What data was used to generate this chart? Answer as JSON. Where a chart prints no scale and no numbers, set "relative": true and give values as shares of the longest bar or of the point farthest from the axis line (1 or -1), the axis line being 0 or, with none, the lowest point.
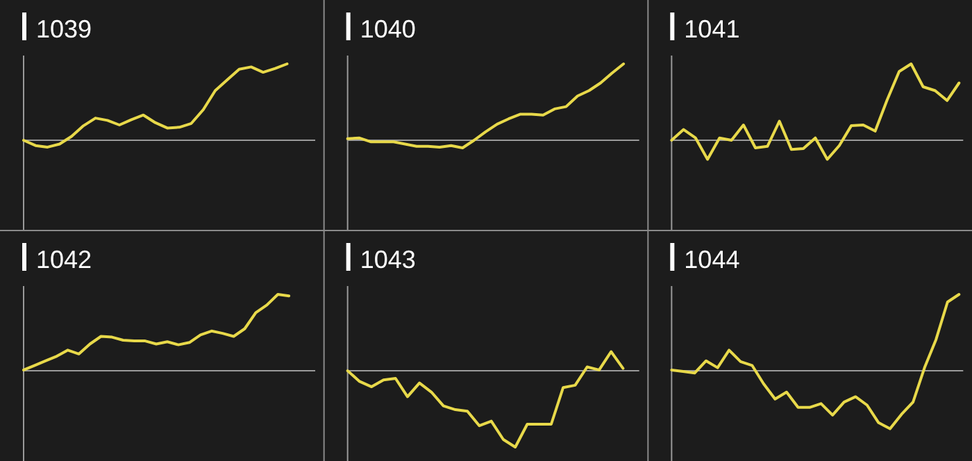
{
  "chart_data": [
    {
      "type": "line",
      "title": "1039",
      "relative": true,
      "categories": [
        null,
        null,
        null,
        null,
        null,
        null,
        null,
        null,
        null,
        null,
        null,
        null,
        null,
        null,
        null,
        null,
        null,
        null,
        null,
        null,
        null,
        null,
        null,
        null,
        null
      ],
      "series": [
        {
          "color": "#e8d94a",
          "values": [
            0,
            -0.07,
            -0.09,
            -0.05,
            0.05,
            0.19,
            0.29,
            0.26,
            0.2,
            0.27,
            0.33,
            0.23,
            0.16,
            0.17,
            0.22,
            0.4,
            0.65,
            0.79,
            0.93,
            0.96,
            0.89,
            0.94,
            1,
            null,
            null
          ]
        }
      ]
    },
    {
      "type": "line",
      "title": "1040",
      "relative": true,
      "categories": [
        null,
        null,
        null,
        null,
        null,
        null,
        null,
        null,
        null,
        null,
        null,
        null,
        null,
        null,
        null,
        null,
        null,
        null,
        null,
        null,
        null,
        null,
        null,
        null,
        null,
        null
      ],
      "series": [
        {
          "color": "#e8d94a",
          "values": [
            0.02,
            0.03,
            -0.02,
            -0.02,
            -0.02,
            -0.05,
            -0.08,
            -0.08,
            -0.09,
            -0.07,
            -0.1,
            0,
            0.11,
            0.21,
            0.28,
            0.34,
            0.34,
            0.33,
            0.41,
            0.44,
            0.58,
            0.65,
            0.75,
            0.88,
            1,
            null
          ]
        }
      ]
    },
    {
      "type": "line",
      "title": "1041",
      "relative": true,
      "categories": [
        null,
        null,
        null,
        null,
        null,
        null,
        null,
        null,
        null,
        null,
        null,
        null,
        null,
        null,
        null,
        null,
        null,
        null,
        null,
        null,
        null,
        null,
        null,
        null,
        null
      ],
      "series": [
        {
          "color": "#e8d94a",
          "values": [
            0,
            0.14,
            0.03,
            -0.25,
            0.03,
            0,
            0.2,
            -0.1,
            -0.08,
            0.25,
            -0.12,
            -0.11,
            0.03,
            -0.25,
            -0.07,
            0.19,
            0.2,
            0.12,
            0.53,
            0.9,
            1,
            0.7,
            0.65,
            0.52,
            0.75
          ]
        }
      ]
    },
    {
      "type": "line",
      "title": "1042",
      "relative": true,
      "categories": [
        null,
        null,
        null,
        null,
        null,
        null,
        null,
        null,
        null,
        null,
        null,
        null,
        null,
        null,
        null,
        null,
        null,
        null,
        null,
        null,
        null,
        null,
        null,
        null,
        null,
        null,
        null
      ],
      "series": [
        {
          "color": "#e8d94a",
          "values": [
            0.01,
            0.07,
            0.13,
            0.19,
            0.27,
            0.22,
            0.35,
            0.45,
            0.44,
            0.4,
            0.39,
            0.39,
            0.35,
            0.38,
            0.34,
            0.37,
            0.47,
            0.52,
            0.49,
            0.45,
            0.55,
            0.76,
            0.86,
            1,
            0.98,
            null,
            null
          ]
        }
      ]
    },
    {
      "type": "line",
      "title": "1043",
      "relative": true,
      "categories": [
        null,
        null,
        null,
        null,
        null,
        null,
        null,
        null,
        null,
        null,
        null,
        null,
        null,
        null,
        null,
        null,
        null,
        null,
        null,
        null,
        null,
        null,
        null,
        null,
        null
      ],
      "series": [
        {
          "color": "#e8d94a",
          "values": [
            0,
            -0.14,
            -0.21,
            -0.12,
            -0.1,
            -0.34,
            -0.16,
            -0.28,
            -0.46,
            -0.51,
            -0.53,
            -0.72,
            -0.66,
            -0.9,
            -1,
            -0.7,
            -0.7,
            -0.7,
            -0.22,
            -0.19,
            0.05,
            0.01,
            0.25,
            0.03,
            null
          ]
        }
      ]
    },
    {
      "type": "line",
      "title": "1044",
      "relative": true,
      "categories": [
        null,
        null,
        null,
        null,
        null,
        null,
        null,
        null,
        null,
        null,
        null,
        null,
        null,
        null,
        null,
        null,
        null,
        null,
        null,
        null,
        null,
        null,
        null,
        null,
        null,
        null
      ],
      "series": [
        {
          "color": "#e8d94a",
          "values": [
            0.01,
            -0.01,
            -0.03,
            0.13,
            0.04,
            0.27,
            0.12,
            0.07,
            -0.17,
            -0.37,
            -0.28,
            -0.48,
            -0.48,
            -0.43,
            -0.58,
            -0.41,
            -0.34,
            -0.45,
            -0.68,
            -0.76,
            -0.57,
            -0.41,
            0.04,
            0.41,
            0.9,
            1
          ]
        }
      ]
    }
  ]
}
